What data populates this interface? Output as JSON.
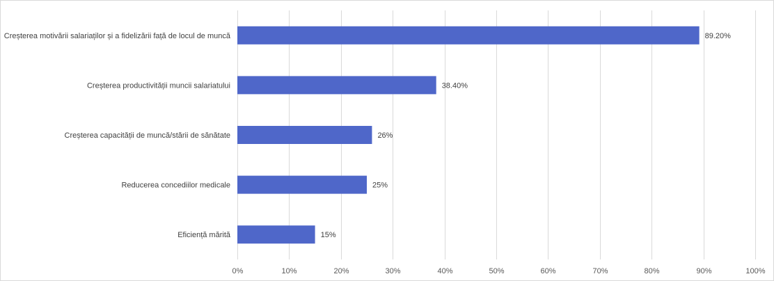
{
  "chart_data": {
    "type": "bar",
    "orientation": "horizontal",
    "categories": [
      "Creșterea motivării salariaților și a fidelizării față de locul de muncă",
      "Creșterea productivității muncii salariatului",
      "Creșterea capacității de muncă/stării de sănătate",
      "Reducerea concediilor medicale",
      "Eficiență mărită"
    ],
    "values": [
      89.2,
      38.4,
      26,
      25,
      15
    ],
    "data_labels": [
      "89.20%",
      "38.40%",
      "26%",
      "25%",
      "15%"
    ],
    "xlim": [
      0,
      100
    ],
    "x_ticks": [
      0,
      10,
      20,
      30,
      40,
      50,
      60,
      70,
      80,
      90,
      100
    ],
    "x_tick_labels": [
      "0%",
      "10%",
      "20%",
      "30%",
      "40%",
      "50%",
      "60%",
      "70%",
      "80%",
      "90%",
      "100%"
    ],
    "grid": true,
    "bar_color": "#4f67c9"
  }
}
